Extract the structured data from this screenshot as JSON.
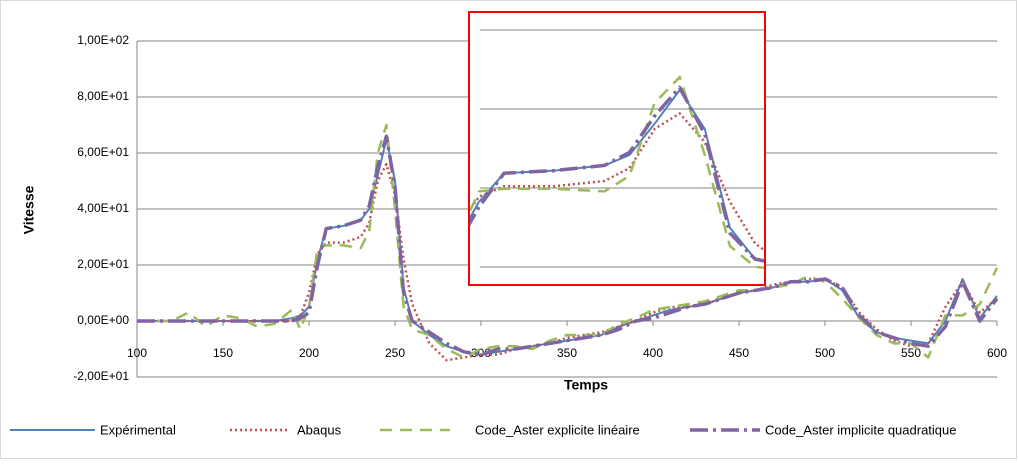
{
  "chart_data": [
    {
      "type": "line",
      "x_label": "Temps",
      "y_label": "Vitesse",
      "xlim": [
        100,
        600
      ],
      "xticks": [
        100,
        150,
        200,
        250,
        300,
        350,
        400,
        450,
        500,
        550,
        600
      ],
      "ylim": [
        -20,
        100
      ],
      "yticks": [
        {
          "value": -20,
          "label": "-2,00E+01"
        },
        {
          "value": 0,
          "label": "0,00E+00"
        },
        {
          "value": 20,
          "label": "2,00E+01"
        },
        {
          "value": 40,
          "label": "4,00E+01"
        },
        {
          "value": 60,
          "label": "6,00E+01"
        },
        {
          "value": 80,
          "label": "8,00E+01"
        },
        {
          "value": 100,
          "label": "1,00E+02"
        }
      ],
      "grid": true,
      "legend": "bottom",
      "x": [
        100,
        110,
        120,
        130,
        140,
        150,
        160,
        170,
        180,
        190,
        195,
        200,
        205,
        210,
        220,
        230,
        235,
        240,
        245,
        250,
        255,
        260,
        270,
        280,
        290,
        300,
        310,
        320,
        330,
        340,
        350,
        360,
        370,
        380,
        390,
        400,
        410,
        420,
        430,
        440,
        450,
        460,
        470,
        480,
        490,
        500,
        510,
        520,
        530,
        540,
        550,
        560,
        570,
        580,
        590,
        600
      ],
      "series": [
        {
          "name": "Expérimental",
          "color": "#4f81bd",
          "style": "solid",
          "values": [
            0,
            0,
            0,
            0,
            0,
            0,
            0,
            0,
            0,
            1,
            2,
            5,
            22,
            33,
            34,
            36,
            40,
            52,
            65,
            50,
            12,
            0,
            -5,
            -9,
            -11,
            -12,
            -11,
            -10,
            -9,
            -8,
            -7,
            -6,
            -5,
            -2,
            0,
            2,
            4,
            5,
            6,
            8,
            10,
            11,
            12,
            14,
            14,
            15,
            11,
            1,
            -4,
            -6,
            -7,
            -8,
            0,
            15,
            1,
            9
          ]
        },
        {
          "name": "Abaqus",
          "color": "#c0504d",
          "style": "dotted",
          "values": [
            0,
            0,
            0,
            0,
            0,
            0,
            0,
            0,
            0,
            0,
            2,
            10,
            24,
            28,
            28,
            30,
            35,
            50,
            56,
            45,
            22,
            6,
            -8,
            -14,
            -13,
            -12,
            -12,
            -10,
            -9,
            -8,
            -6,
            -5,
            -4,
            -2,
            0,
            3,
            5,
            5,
            6,
            8,
            10,
            11,
            13,
            14,
            15,
            15,
            12,
            3,
            -3,
            -7,
            -9,
            -8,
            5,
            14,
            3,
            8
          ]
        },
        {
          "name": "Code_Aster explicite linéaire",
          "color": "#9bbb59",
          "style": "dashed",
          "values": [
            0,
            0,
            0,
            3,
            -2,
            2,
            1,
            -2,
            -1,
            4,
            -3,
            5,
            26,
            27,
            27,
            26,
            32,
            60,
            70,
            40,
            5,
            -3,
            -5,
            -10,
            -13,
            -10,
            -9,
            -9,
            -10,
            -7,
            -5,
            -5,
            -5,
            -1,
            1,
            4,
            5,
            6,
            7,
            9,
            11,
            11,
            12,
            13,
            16,
            14,
            8,
            1,
            -5,
            -8,
            -8,
            -13,
            2,
            2,
            6,
            19
          ]
        },
        {
          "name": "Code_Aster implicite quadratique",
          "color": "#8064a2",
          "style": "dashdot",
          "values": [
            0,
            0,
            0,
            0,
            0,
            0,
            0,
            0,
            0,
            0,
            1,
            3,
            20,
            33,
            34,
            36,
            41,
            55,
            66,
            48,
            10,
            0,
            -4,
            -8,
            -11,
            -12,
            -10,
            -10,
            -9,
            -8,
            -7,
            -6,
            -5,
            -3,
            0,
            1,
            3,
            5,
            6,
            8,
            10,
            11,
            12,
            14,
            14,
            15,
            12,
            2,
            -4,
            -6,
            -8,
            -9,
            -2,
            14,
            0,
            8
          ]
        }
      ]
    },
    {
      "type": "inset",
      "xlim": [
        203,
        262
      ],
      "ylim": [
        -10,
        95
      ],
      "color": "#ff0000"
    }
  ]
}
